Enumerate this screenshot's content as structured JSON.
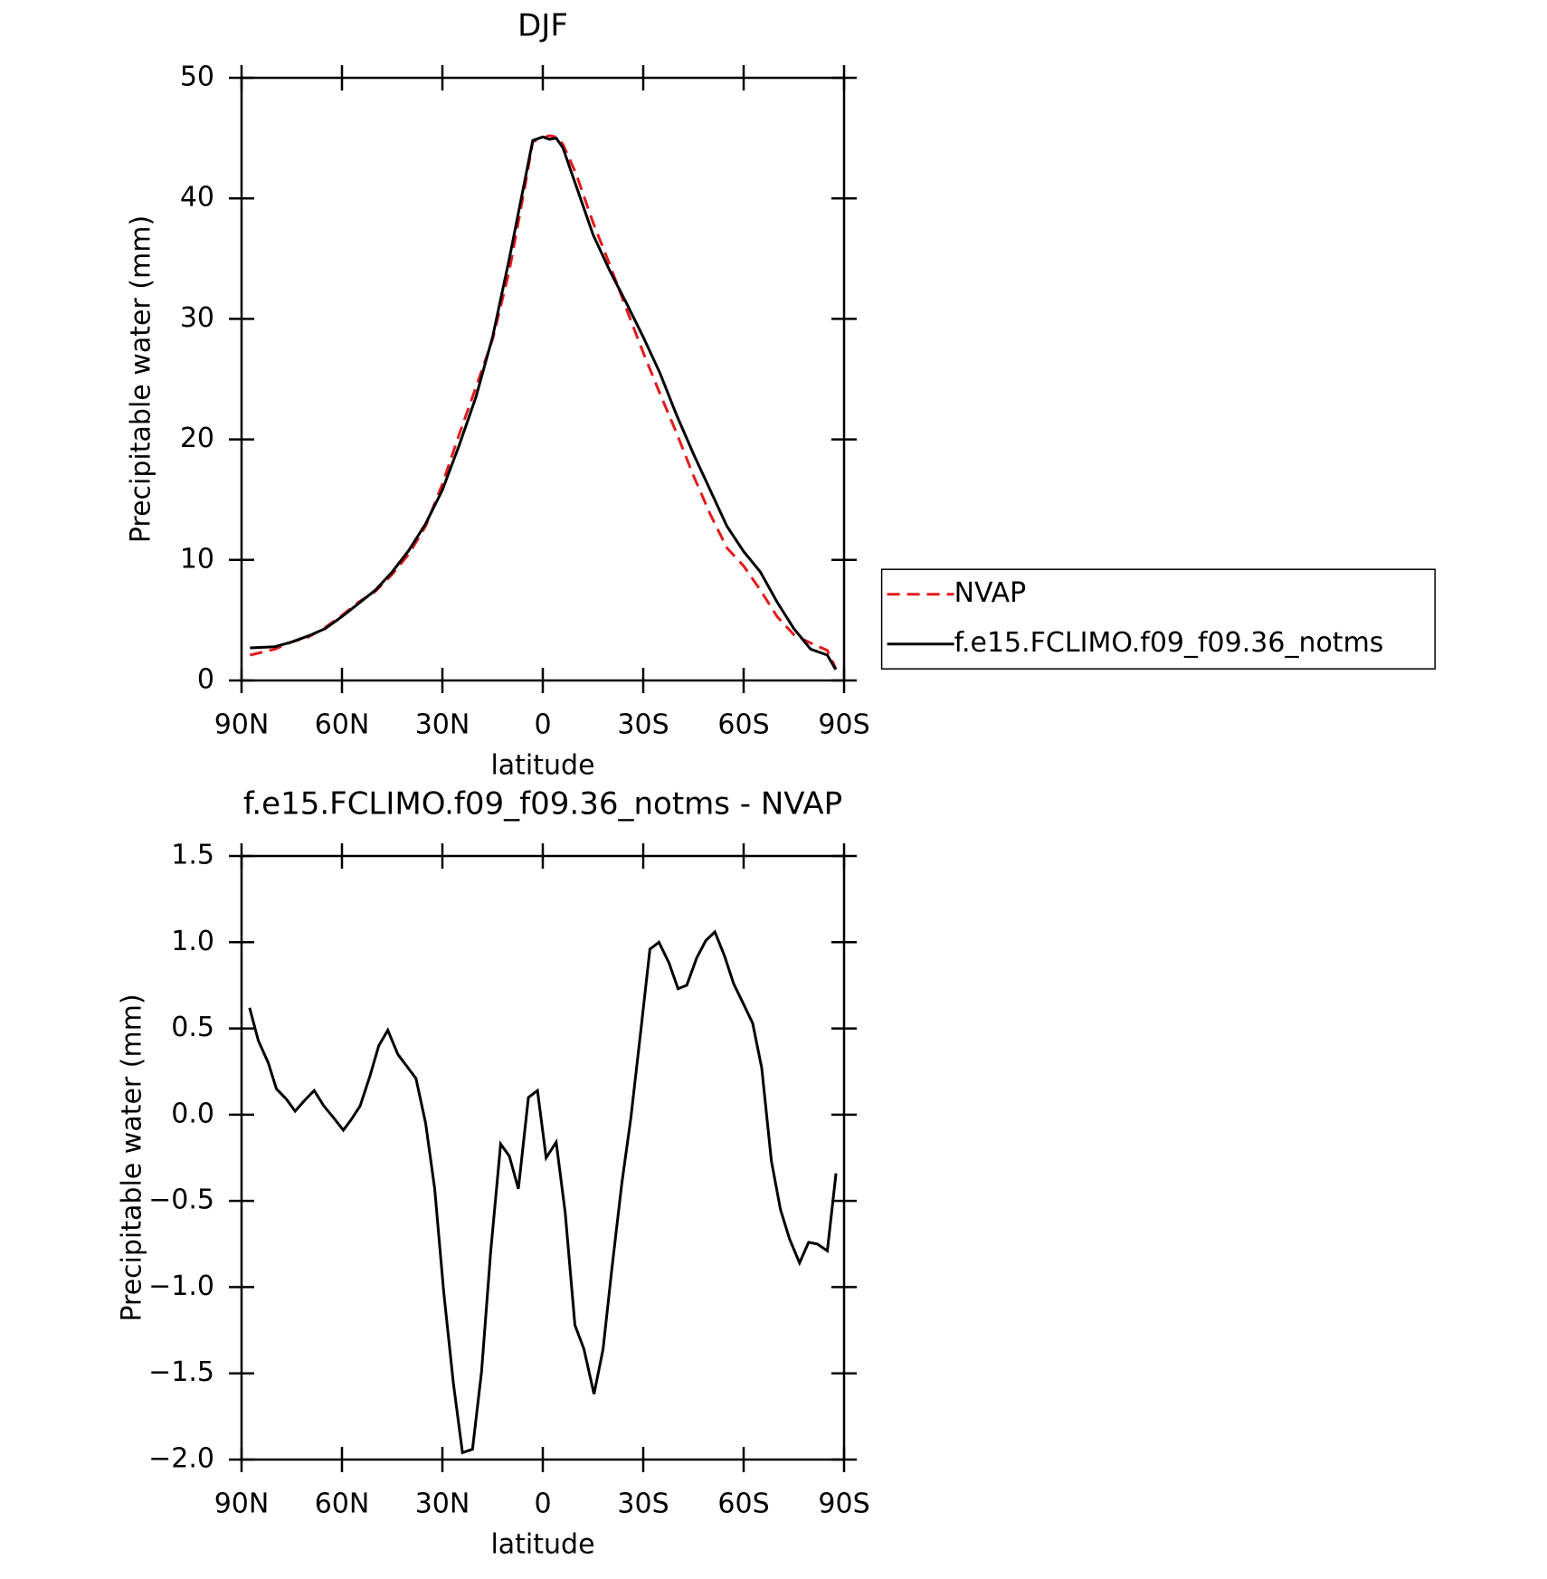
{
  "chart_data": [
    {
      "type": "line",
      "title": "DJF",
      "xlabel": "latitude",
      "ylabel": "Precipitable water (mm)",
      "x": [
        87.5,
        80,
        75,
        70,
        65,
        60,
        55,
        50,
        45,
        40,
        35,
        30,
        25,
        20,
        15,
        10,
        5,
        3,
        0,
        -2,
        -4,
        -6,
        -10,
        -15,
        -20,
        -25,
        -30,
        -35,
        -40,
        -45,
        -50,
        -55,
        -60,
        -65,
        -70,
        -75,
        -80,
        -85,
        -87.5
      ],
      "series": [
        {
          "name": "NVAP",
          "color": "#e41a1c",
          "dash": "dashed",
          "values": [
            2.1,
            2.6,
            3.2,
            3.6,
            4.4,
            5.4,
            6.5,
            7.4,
            8.8,
            10.5,
            12.8,
            16.3,
            20.4,
            24.3,
            28.3,
            34.0,
            41.5,
            44.7,
            45.0,
            45.2,
            45.1,
            44.5,
            42,
            38,
            34.5,
            30.8,
            27.2,
            23.8,
            20.5,
            17,
            13.8,
            11,
            9.5,
            7.5,
            5.3,
            3.8,
            3.1,
            2.5,
            1.0
          ]
        },
        {
          "name": "f.e15.FCLIMO.f09_f09.36_notms",
          "color": "#000000",
          "dash": "solid",
          "values": [
            2.7,
            2.8,
            3.2,
            3.7,
            4.3,
            5.3,
            6.4,
            7.5,
            9.0,
            10.8,
            13.0,
            15.8,
            19.5,
            23.5,
            28.5,
            35,
            42,
            44.8,
            45.1,
            44.9,
            45.0,
            44.2,
            41,
            37,
            34,
            31.3,
            28.5,
            25.5,
            22,
            18.8,
            15.8,
            12.8,
            10.7,
            9.0,
            6.5,
            4.3,
            2.6,
            2.1,
            0.9
          ]
        }
      ],
      "xlim": [
        90,
        -90
      ],
      "xticks": [
        {
          "value": 90,
          "label": "90N"
        },
        {
          "value": 60,
          "label": "60N"
        },
        {
          "value": 30,
          "label": "30N"
        },
        0,
        {
          "value": -30,
          "label": "30S"
        },
        {
          "value": -60,
          "label": "60S"
        },
        {
          "value": -90,
          "label": "90S"
        }
      ],
      "ylim": [
        0,
        50
      ],
      "yticks": [
        0,
        10,
        20,
        30,
        40,
        50
      ],
      "legend": "outside-right"
    },
    {
      "type": "line",
      "title": "f.e15.FCLIMO.f09_f09.36_notms - NVAP",
      "xlabel": "latitude",
      "ylabel": "Precipitable water (mm)",
      "x": [
        87.6,
        85,
        82,
        79.6,
        76.6,
        74,
        71.3,
        68.3,
        65.4,
        62.4,
        59.6,
        57.3,
        54.6,
        51.7,
        49,
        46.3,
        43.3,
        40.6,
        37.9,
        35,
        32.3,
        29.6,
        26.7,
        24,
        21,
        18.3,
        15.6,
        12.6,
        10,
        7.3,
        4.3,
        1.6,
        -1,
        -4,
        -6.7,
        -9.6,
        -12.3,
        -15.3,
        -18,
        -20.6,
        -23.6,
        -26.3,
        -29.3,
        -32,
        -34.7,
        -37.7,
        -40.4,
        -43,
        -46,
        -48.7,
        -51.4,
        -54.3,
        -57,
        -60,
        -62.7,
        -65.4,
        -68.3,
        -71,
        -73.7,
        -76.7,
        -79.4,
        -82,
        -85,
        -87.6
      ],
      "series": [
        {
          "name": "f.e15.FCLIMO.f09_f09.36_notms - NVAP",
          "color": "#000000",
          "dash": "solid",
          "values": [
            0.62,
            0.43,
            0.3,
            0.15,
            0.09,
            0.02,
            0.08,
            0.14,
            0.05,
            -0.02,
            -0.09,
            -0.03,
            0.05,
            0.22,
            0.4,
            0.49,
            0.35,
            0.28,
            0.21,
            -0.05,
            -0.43,
            -1.03,
            -1.56,
            -1.96,
            -1.94,
            -1.49,
            -0.8,
            -0.17,
            -0.24,
            -0.43,
            0.1,
            0.14,
            -0.25,
            -0.16,
            -0.57,
            -1.22,
            -1.36,
            -1.62,
            -1.36,
            -0.9,
            -0.4,
            -0.02,
            0.49,
            0.96,
            1.0,
            0.88,
            0.73,
            0.75,
            0.91,
            1.01,
            1.06,
            0.92,
            0.76,
            0.64,
            0.53,
            0.27,
            -0.27,
            -0.55,
            -0.72,
            -0.86,
            -0.74,
            -0.75,
            -0.79,
            -0.34
          ]
        }
      ],
      "xlim": [
        90,
        -90
      ],
      "xticks": [
        {
          "value": 90,
          "label": "90N"
        },
        {
          "value": 60,
          "label": "60N"
        },
        {
          "value": 30,
          "label": "30N"
        },
        0,
        {
          "value": -30,
          "label": "30S"
        },
        {
          "value": -60,
          "label": "60S"
        },
        {
          "value": -90,
          "label": "90S"
        }
      ],
      "ylim": [
        -2.0,
        1.5
      ],
      "yticks": [
        {
          "value": -2.0,
          "label": "−2.0"
        },
        {
          "value": -1.5,
          "label": "−1.5"
        },
        {
          "value": -1.0,
          "label": "−1.0"
        },
        {
          "value": -0.5,
          "label": "−0.5"
        },
        {
          "value": 0.0,
          "label": "0.0"
        },
        0.5,
        {
          "value": 1.0,
          "label": "1.0"
        },
        1.5
      ]
    }
  ]
}
